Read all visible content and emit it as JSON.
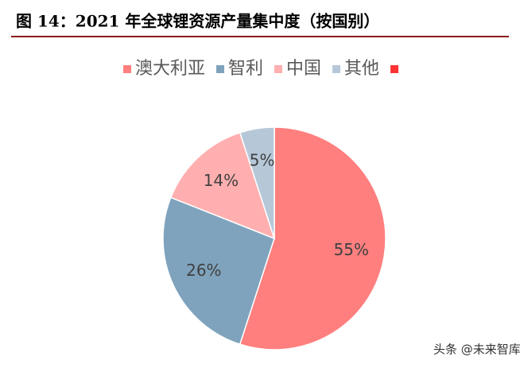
{
  "chart_data": {
    "type": "pie",
    "title": "图 14：2021 年全球锂资源产量集中度（按国别）",
    "categories": [
      "澳大利亚",
      "智利",
      "中国",
      "其他"
    ],
    "values": [
      55,
      26,
      14,
      5
    ],
    "value_labels": [
      "55%",
      "26%",
      "14%",
      "5%"
    ],
    "colors": [
      "#ff7f7f",
      "#7fa3bd",
      "#ffafaf",
      "#b6c8d8"
    ]
  },
  "watermark": "头条 @未来智库"
}
